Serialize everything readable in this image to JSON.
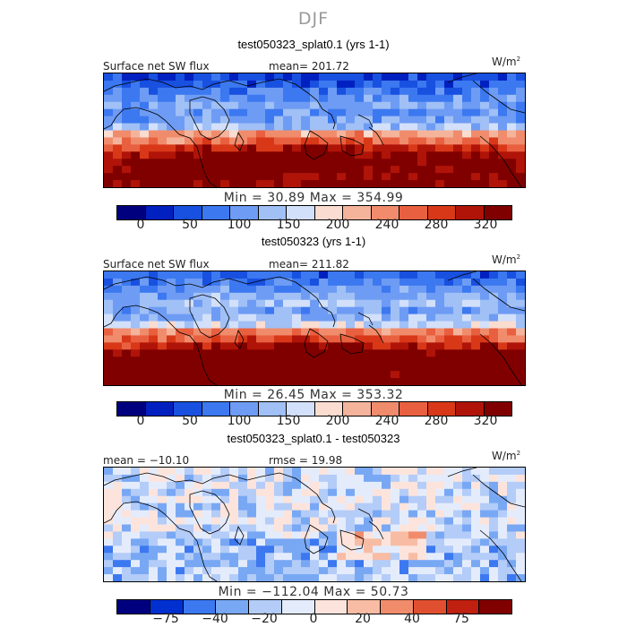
{
  "season": "DJF",
  "units_label": "W/m",
  "units_sup": "2",
  "panels": [
    {
      "title": "test050323_splat0.1 (yrs 1-1)",
      "left_label": "Surface net SW flux",
      "center_label": "mean= 201.72",
      "stats": "Min =   30.89  Max = 354.99",
      "colorbar_ticks": [
        "0",
        "50",
        "100",
        "150",
        "200",
        "240",
        "280",
        "320"
      ]
    },
    {
      "title": "test050323 (yrs 1-1)",
      "left_label": "Surface net SW flux",
      "center_label": "mean= 211.82",
      "stats": "Min =   26.45  Max = 353.32",
      "colorbar_ticks": [
        "0",
        "50",
        "100",
        "150",
        "200",
        "240",
        "280",
        "320"
      ]
    },
    {
      "title": "test050323_splat0.1 - test050323",
      "left_label": "mean = −10.10",
      "center_label": "rmse =   19.98",
      "stats": "Min = −112.04  Max =   50.73",
      "colorbar_ticks": [
        "−75",
        "−40",
        "−20",
        "0",
        "20",
        "40",
        "75"
      ]
    }
  ],
  "colors": {
    "abs_scale": [
      "#00007f",
      "#0020c0",
      "#1850e0",
      "#3c78f0",
      "#6e9cf4",
      "#a0c0f6",
      "#d2e0fa",
      "#fadcd0",
      "#f4b49c",
      "#f08c6c",
      "#e86040",
      "#d83818",
      "#b01408",
      "#800000"
    ],
    "diff_scale": [
      "#00007f",
      "#0030d0",
      "#3c78f0",
      "#78a8f4",
      "#b4ccf8",
      "#e4ecfc",
      "#fce4dc",
      "#f8bca4",
      "#f08c6c",
      "#e05030",
      "#c02010",
      "#800000"
    ],
    "land_outline": "#000000"
  }
}
